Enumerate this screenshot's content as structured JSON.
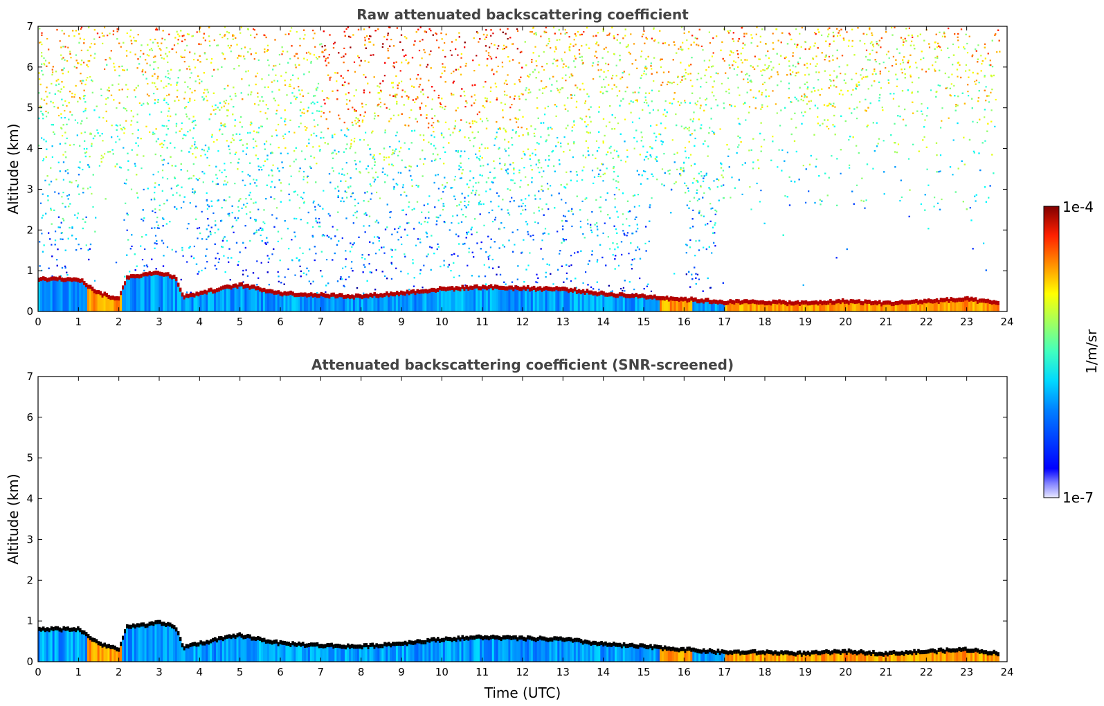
{
  "chart_data": [
    {
      "type": "heatmap",
      "title": "Raw attenuated backscattering coefficient",
      "xlabel": "",
      "ylabel": "Altitude (km)",
      "xlim": [
        0,
        24
      ],
      "ylim": [
        0,
        7
      ],
      "xticks": [
        "0",
        "1",
        "2",
        "3",
        "4",
        "5",
        "6",
        "7",
        "8",
        "9",
        "10",
        "11",
        "12",
        "13",
        "14",
        "15",
        "16",
        "17",
        "18",
        "19",
        "20",
        "21",
        "22",
        "23",
        "24"
      ],
      "yticks": [
        "0",
        "1",
        "2",
        "3",
        "4",
        "5",
        "6",
        "7"
      ],
      "boundary_layer_top_km": [
        {
          "t": 0,
          "h": 0.85
        },
        {
          "t": 1,
          "h": 0.85
        },
        {
          "t": 1.5,
          "h": 0.5
        },
        {
          "t": 2,
          "h": 0.35
        },
        {
          "t": 2.2,
          "h": 0.9
        },
        {
          "t": 3,
          "h": 1.0
        },
        {
          "t": 3.4,
          "h": 0.9
        },
        {
          "t": 3.6,
          "h": 0.4
        },
        {
          "t": 4,
          "h": 0.5
        },
        {
          "t": 4.5,
          "h": 0.6
        },
        {
          "t": 5,
          "h": 0.7
        },
        {
          "t": 5.5,
          "h": 0.6
        },
        {
          "t": 6,
          "h": 0.5
        },
        {
          "t": 7,
          "h": 0.45
        },
        {
          "t": 8,
          "h": 0.42
        },
        {
          "t": 9,
          "h": 0.5
        },
        {
          "t": 10,
          "h": 0.6
        },
        {
          "t": 11,
          "h": 0.65
        },
        {
          "t": 12,
          "h": 0.62
        },
        {
          "t": 13,
          "h": 0.6
        },
        {
          "t": 14,
          "h": 0.48
        },
        {
          "t": 15,
          "h": 0.42
        },
        {
          "t": 16,
          "h": 0.35
        },
        {
          "t": 17,
          "h": 0.28
        },
        {
          "t": 18,
          "h": 0.28
        },
        {
          "t": 19,
          "h": 0.25
        },
        {
          "t": 20,
          "h": 0.3
        },
        {
          "t": 21,
          "h": 0.25
        },
        {
          "t": 22,
          "h": 0.3
        },
        {
          "t": 23,
          "h": 0.35
        },
        {
          "t": 23.8,
          "h": 0.25
        }
      ],
      "data_end_hour": 23.8
    },
    {
      "type": "heatmap",
      "title": "Attenuated backscattering coefficient (SNR-screened)",
      "xlabel": "Time (UTC)",
      "ylabel": "Altitude (km)",
      "xlim": [
        0,
        24
      ],
      "ylim": [
        0,
        7
      ],
      "xticks": [
        "0",
        "1",
        "2",
        "3",
        "4",
        "5",
        "6",
        "7",
        "8",
        "9",
        "10",
        "11",
        "12",
        "13",
        "14",
        "15",
        "16",
        "17",
        "18",
        "19",
        "20",
        "21",
        "22",
        "23",
        "24"
      ],
      "yticks": [
        "0",
        "1",
        "2",
        "3",
        "4",
        "5",
        "6",
        "7"
      ],
      "data_end_hour": 23.8
    }
  ],
  "colorbar": {
    "label": "1/m/sr",
    "max_label": "1e-4",
    "min_label": "1e-7",
    "scale": "log",
    "colormap": "jet"
  },
  "colors": {
    "title": "#444444",
    "high": "#8b0000",
    "low": "#00007f"
  }
}
